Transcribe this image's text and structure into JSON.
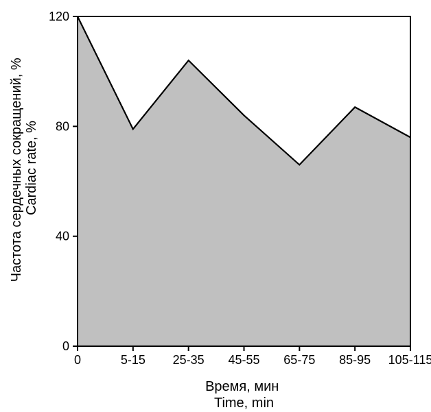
{
  "chart_data": {
    "type": "area",
    "categories": [
      "0",
      "5-15",
      "25-35",
      "45-55",
      "65-75",
      "85-95",
      "105-115"
    ],
    "series": [
      {
        "values": [
          120,
          79,
          104,
          84,
          66,
          87,
          76
        ]
      }
    ],
    "xlabel": [
      "Время, мин",
      "Time, min"
    ],
    "ylabel": [
      "Частота сердечных сокращений, %",
      "Cardiac rate, %"
    ],
    "ylim": [
      0,
      120
    ],
    "yticks": [
      0,
      40,
      80,
      120
    ],
    "grid": false,
    "fill_color": "#c0c0c0",
    "line_color": "#000000"
  }
}
